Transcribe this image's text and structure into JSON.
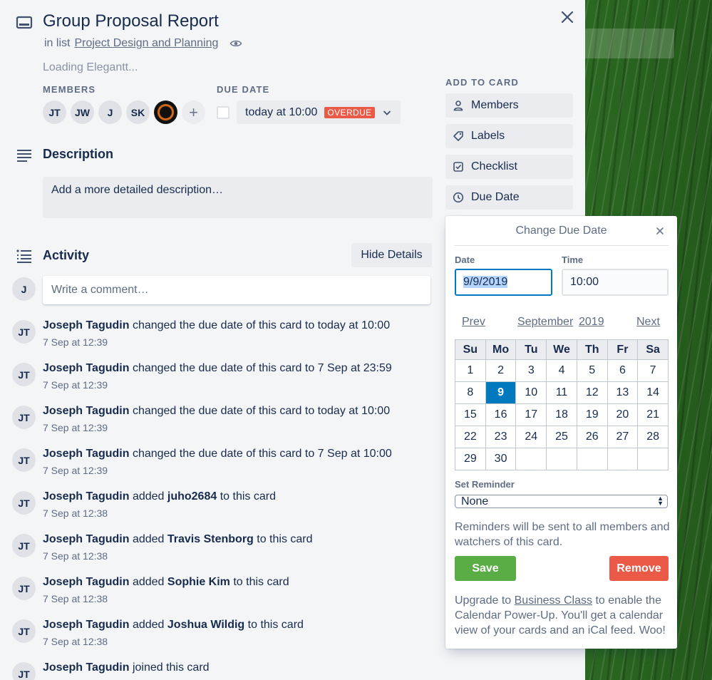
{
  "card": {
    "title": "Group Proposal Report",
    "in_list_prefix": "in list",
    "list_name": "Project Design and Planning",
    "loading_text": "Loading Elegantt...",
    "members_label": "MEMBERS",
    "members": [
      "JT",
      "JW",
      "J",
      "SK"
    ],
    "add_member": "+",
    "due_label": "DUE DATE",
    "due_value": "today at 10:00",
    "overdue_badge": "OVERDUE"
  },
  "description": {
    "title": "Description",
    "placeholder": "Add a more detailed description…"
  },
  "activity": {
    "title": "Activity",
    "hide_details": "Hide Details",
    "comment_avatar": "J",
    "comment_placeholder": "Write a comment…",
    "items": [
      {
        "avatar": "JT",
        "actor": "Joseph Tagudin",
        "pre": "changed the due date of this card to today at 10:00",
        "obj": "",
        "post": "",
        "time": "7 Sep at 12:39"
      },
      {
        "avatar": "JT",
        "actor": "Joseph Tagudin",
        "pre": "changed the due date of this card to 7 Sep at 23:59",
        "obj": "",
        "post": "",
        "time": "7 Sep at 12:39"
      },
      {
        "avatar": "JT",
        "actor": "Joseph Tagudin",
        "pre": "changed the due date of this card to today at 10:00",
        "obj": "",
        "post": "",
        "time": "7 Sep at 12:39"
      },
      {
        "avatar": "JT",
        "actor": "Joseph Tagudin",
        "pre": "changed the due date of this card to 7 Sep at 10:00",
        "obj": "",
        "post": "",
        "time": "7 Sep at 12:39"
      },
      {
        "avatar": "JT",
        "actor": "Joseph Tagudin",
        "pre": "added",
        "obj": "juho2684",
        "post": "to this card",
        "time": "7 Sep at 12:38"
      },
      {
        "avatar": "JT",
        "actor": "Joseph Tagudin",
        "pre": "added",
        "obj": "Travis Stenborg",
        "post": "to this card",
        "time": "7 Sep at 12:38"
      },
      {
        "avatar": "JT",
        "actor": "Joseph Tagudin",
        "pre": "added",
        "obj": "Sophie Kim",
        "post": "to this card",
        "time": "7 Sep at 12:38"
      },
      {
        "avatar": "JT",
        "actor": "Joseph Tagudin",
        "pre": "added",
        "obj": "Joshua Wildig",
        "post": "to this card",
        "time": "7 Sep at 12:38"
      },
      {
        "avatar": "JT",
        "actor": "Joseph Tagudin",
        "pre": "joined this card",
        "obj": "",
        "post": "",
        "time": ""
      }
    ]
  },
  "sidebar": {
    "add_label": "ADD TO CARD",
    "members": "Members",
    "labels": "Labels",
    "checklist": "Checklist",
    "due_date": "Due Date"
  },
  "popover": {
    "title": "Change Due Date",
    "date_label": "Date",
    "time_label": "Time",
    "date_value": "9/9/2019",
    "time_value": "10:00",
    "prev": "Prev",
    "next": "Next",
    "month": "September",
    "year": "2019",
    "weekdays": [
      "Su",
      "Mo",
      "Tu",
      "We",
      "Th",
      "Fr",
      "Sa"
    ],
    "weeks": [
      [
        "1",
        "2",
        "3",
        "4",
        "5",
        "6",
        "7"
      ],
      [
        "8",
        "9",
        "10",
        "11",
        "12",
        "13",
        "14"
      ],
      [
        "15",
        "16",
        "17",
        "18",
        "19",
        "20",
        "21"
      ],
      [
        "22",
        "23",
        "24",
        "25",
        "26",
        "27",
        "28"
      ],
      [
        "29",
        "30",
        "",
        "",
        "",
        "",
        ""
      ]
    ],
    "selected_day": "9",
    "reminder_label": "Set Reminder",
    "reminder_value": "None",
    "reminder_note": "Reminders will be sent to all members and watchers of this card.",
    "save": "Save",
    "remove": "Remove",
    "upgrade_pre": "Upgrade to",
    "upgrade_link": "Business Class",
    "upgrade_post": "to enable the Calendar Power-Up. You'll get a calendar view of your cards and an iCal feed. Woo!"
  },
  "colors": {
    "accent": "#0079bf",
    "save": "#5aac44",
    "remove": "#eb5a46"
  }
}
